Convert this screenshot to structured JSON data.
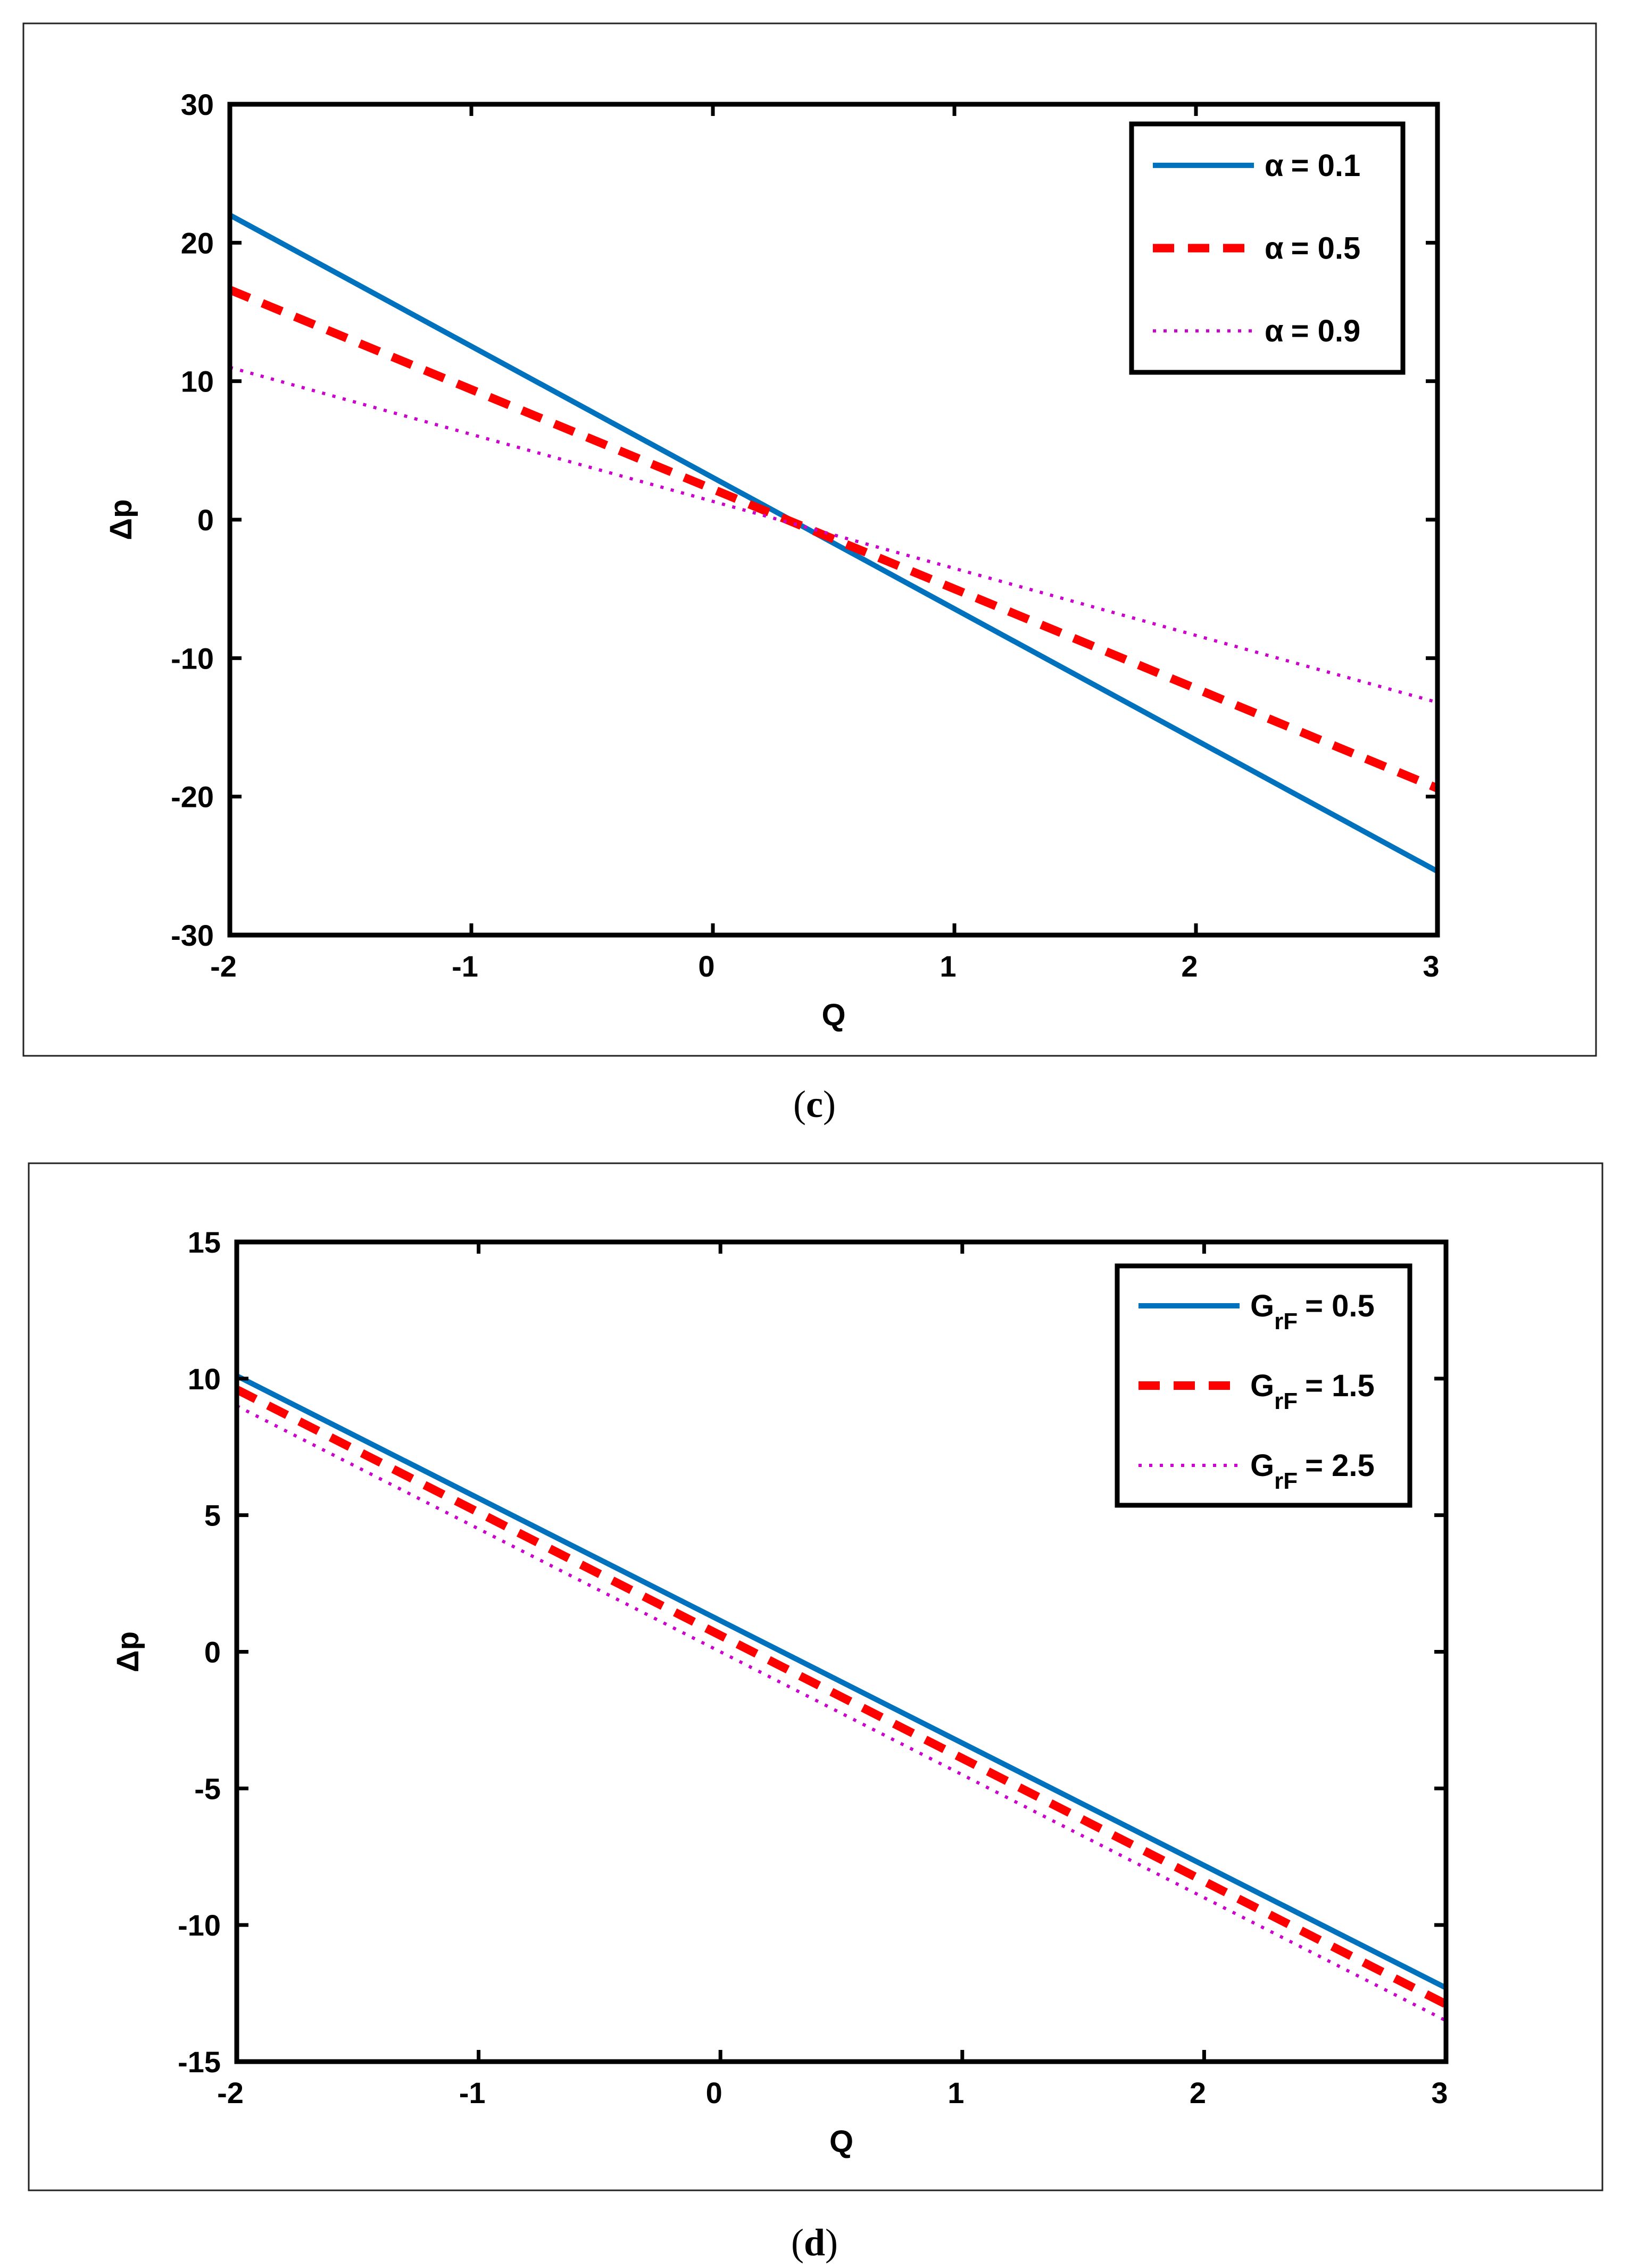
{
  "chart_data": [
    {
      "id": "c",
      "type": "line",
      "caption_letter": "c",
      "title": "",
      "xlabel": "Q",
      "ylabel": "Δp",
      "xlim": [
        -2,
        3
      ],
      "ylim": [
        -30,
        30
      ],
      "xticks": [
        -2,
        -1,
        0,
        1,
        2,
        3
      ],
      "yticks": [
        -30,
        -20,
        -10,
        0,
        10,
        20,
        30
      ],
      "grid": false,
      "legend_position": "top-right",
      "series": [
        {
          "name_prefix": "α",
          "name_sub": "",
          "name_value": "= 0.1",
          "color": "#0072BD",
          "style": "solid",
          "x": [
            -2,
            3
          ],
          "y": [
            22.0,
            -25.4
          ]
        },
        {
          "name_prefix": "α",
          "name_sub": "",
          "name_value": "= 0.5",
          "color": "#FF0000",
          "style": "dashed",
          "x": [
            -2,
            3
          ],
          "y": [
            16.6,
            -19.4
          ]
        },
        {
          "name_prefix": "α",
          "name_sub": "",
          "name_value": "= 0.9",
          "color": "#CC00CC",
          "style": "dotted",
          "x": [
            -2,
            3
          ],
          "y": [
            11.0,
            -13.2
          ]
        }
      ]
    },
    {
      "id": "d",
      "type": "line",
      "caption_letter": "d",
      "title": "",
      "xlabel": "Q",
      "ylabel": "Δp",
      "xlim": [
        -2,
        3
      ],
      "ylim": [
        -15,
        15
      ],
      "xticks": [
        -2,
        -1,
        0,
        1,
        2,
        3
      ],
      "yticks": [
        -15,
        -10,
        -5,
        0,
        5,
        10,
        15
      ],
      "grid": false,
      "legend_position": "top-right",
      "series": [
        {
          "name_prefix": "G",
          "name_sub": "rF",
          "name_value": "= 0.5",
          "color": "#0072BD",
          "style": "solid",
          "x": [
            -2,
            3
          ],
          "y": [
            10.1,
            -12.3
          ]
        },
        {
          "name_prefix": "G",
          "name_sub": "rF",
          "name_value": "= 1.5",
          "color": "#FF0000",
          "style": "dashed",
          "x": [
            -2,
            3
          ],
          "y": [
            9.6,
            -12.9
          ]
        },
        {
          "name_prefix": "G",
          "name_sub": "rF",
          "name_value": "= 2.5",
          "color": "#CC00CC",
          "style": "dotted",
          "x": [
            -2,
            3
          ],
          "y": [
            9.0,
            -13.5
          ]
        }
      ]
    }
  ]
}
